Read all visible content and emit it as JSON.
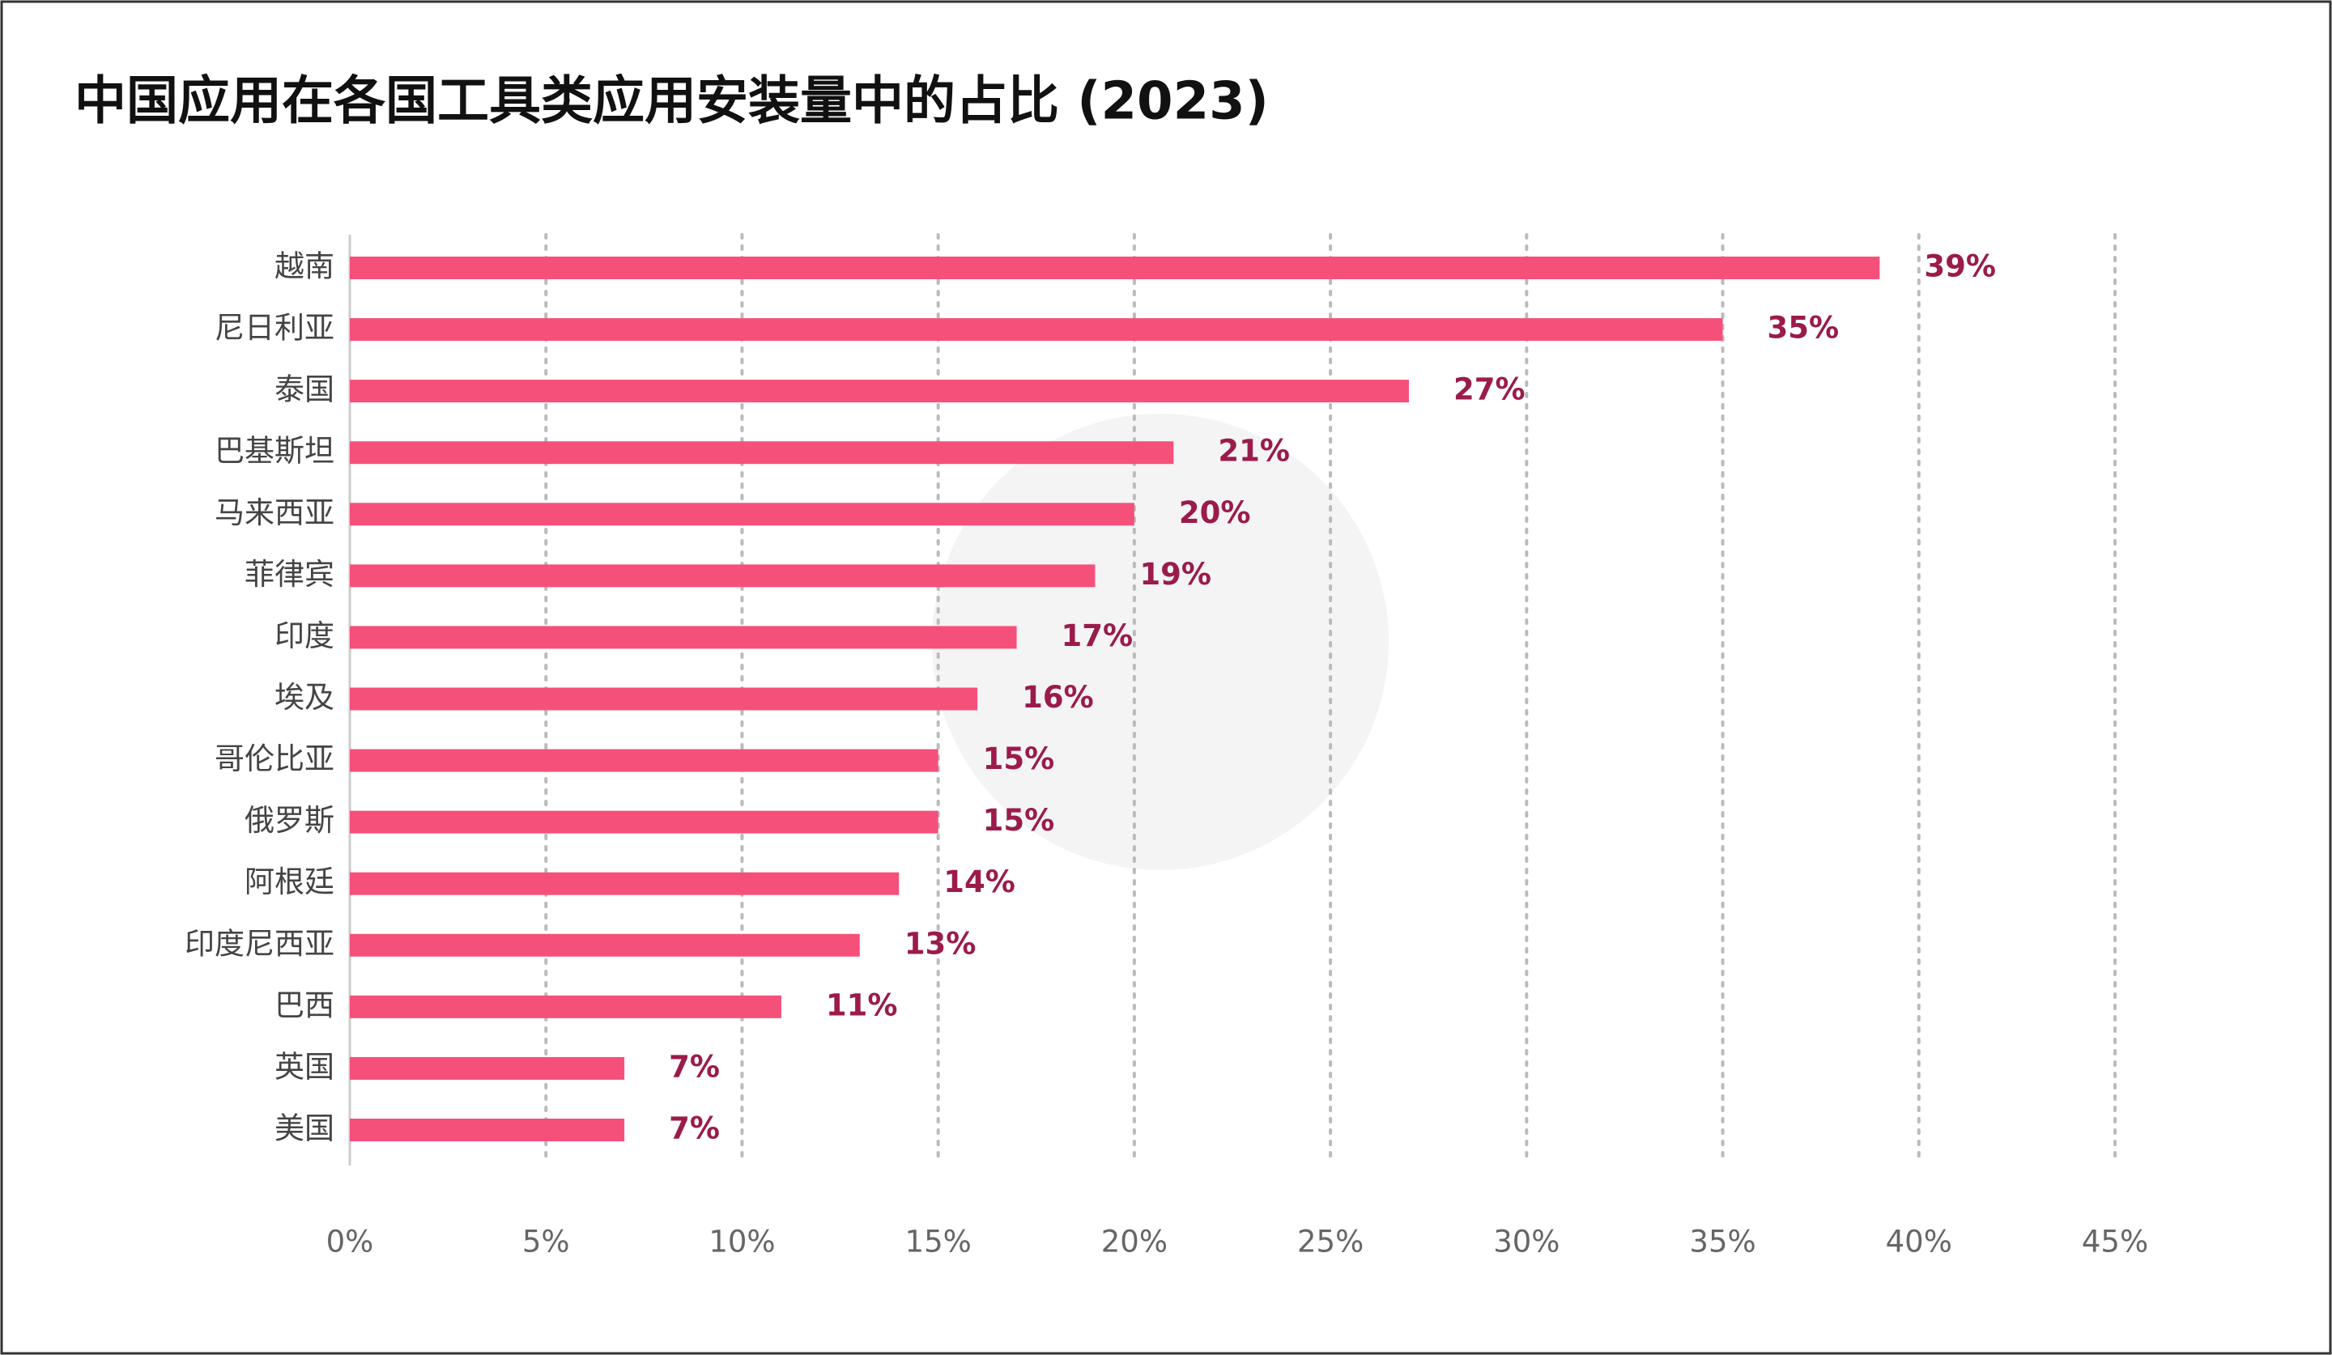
{
  "chart_data": {
    "type": "hbar",
    "title": "中国应用在各国工具类应用安装量中的占比 (2023)",
    "categories": [
      "越南",
      "尼日利亚",
      "泰国",
      "巴基斯坦",
      "马来西亚",
      "菲律宾",
      "印度",
      "埃及",
      "哥伦比亚",
      "俄罗斯",
      "阿根廷",
      "印度尼西亚",
      "巴西",
      "英国",
      "美国"
    ],
    "values": [
      39,
      35,
      27,
      21,
      20,
      19,
      17,
      16,
      15,
      15,
      14,
      13,
      11,
      7,
      7
    ],
    "value_labels": [
      "39%",
      "35%",
      "27%",
      "21%",
      "20%",
      "19%",
      "17%",
      "16%",
      "15%",
      "15%",
      "14%",
      "13%",
      "11%",
      "7%",
      "7%"
    ],
    "color": "#f5507a",
    "label_color": "#9b1b4b",
    "xlim": [
      0,
      45
    ],
    "xticks": [
      {
        "value": 0,
        "label": "0%"
      },
      {
        "value": 5,
        "label": "5%"
      },
      {
        "value": 10,
        "label": "10%"
      },
      {
        "value": 15,
        "label": "15%"
      },
      {
        "value": 20,
        "label": "20%"
      },
      {
        "value": 25,
        "label": "25%"
      },
      {
        "value": 30,
        "label": "30%"
      },
      {
        "value": 35,
        "label": "35%"
      },
      {
        "value": 40,
        "label": "40%"
      },
      {
        "value": 45,
        "label": "45%"
      }
    ],
    "grid": true
  }
}
